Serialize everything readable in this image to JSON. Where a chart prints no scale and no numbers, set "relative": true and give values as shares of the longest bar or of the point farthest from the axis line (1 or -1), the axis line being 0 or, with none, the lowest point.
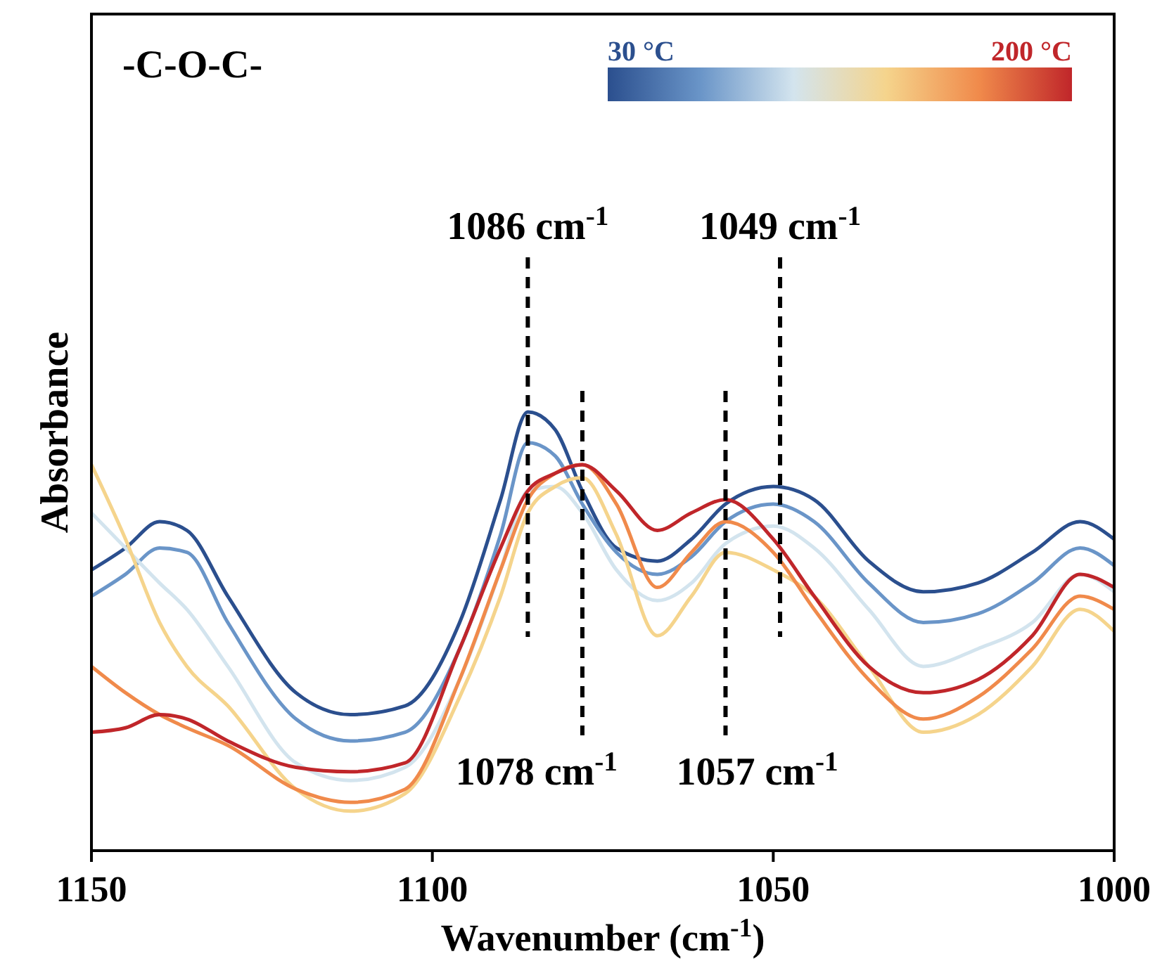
{
  "chart_data": {
    "type": "line",
    "relative": true,
    "xlabel": "Wavenumber (cm$^{-1}$)",
    "ylabel": "Absorbance",
    "x": [
      1150,
      1145,
      1140,
      1136,
      1130,
      1120,
      1112,
      1104,
      1096,
      1090,
      1086,
      1082,
      1078,
      1073,
      1067,
      1062,
      1057,
      1050,
      1044,
      1036,
      1028,
      1020,
      1012,
      1005,
      1000
    ],
    "xlim": [
      1150,
      1000
    ],
    "xticks": [
      1150,
      1100,
      1050,
      1000
    ],
    "tick_labels": "x",
    "grid": false,
    "legend": "top right",
    "line_style": "solid",
    "marker": "none",
    "series": [
      {
        "name": "30 °C",
        "color": "#2b4f8e",
        "values": [
          0.64,
          0.69,
          0.75,
          0.73,
          0.58,
          0.36,
          0.31,
          0.33,
          0.52,
          0.8,
          1.0,
          0.96,
          0.82,
          0.69,
          0.66,
          0.71,
          0.79,
          0.83,
          0.8,
          0.66,
          0.59,
          0.61,
          0.68,
          0.75,
          0.71
        ]
      },
      {
        "color": "#6a95c8",
        "values": [
          0.58,
          0.63,
          0.69,
          0.68,
          0.52,
          0.3,
          0.25,
          0.27,
          0.46,
          0.72,
          0.93,
          0.9,
          0.79,
          0.68,
          0.63,
          0.67,
          0.75,
          0.79,
          0.75,
          0.61,
          0.52,
          0.54,
          0.61,
          0.69,
          0.65
        ]
      },
      {
        "color": "#d3e4ee",
        "values": [
          0.77,
          0.69,
          0.61,
          0.55,
          0.42,
          0.2,
          0.16,
          0.19,
          0.39,
          0.64,
          0.82,
          0.83,
          0.77,
          0.64,
          0.57,
          0.61,
          0.7,
          0.74,
          0.69,
          0.55,
          0.42,
          0.46,
          0.52,
          0.63,
          0.59
        ]
      },
      {
        "color": "#f5d48c",
        "values": [
          0.88,
          0.71,
          0.52,
          0.42,
          0.33,
          0.14,
          0.09,
          0.13,
          0.35,
          0.58,
          0.77,
          0.83,
          0.85,
          0.72,
          0.49,
          0.58,
          0.68,
          0.64,
          0.58,
          0.42,
          0.27,
          0.31,
          0.42,
          0.55,
          0.5
        ]
      },
      {
        "color": "#f08a4b",
        "values": [
          0.42,
          0.36,
          0.31,
          0.28,
          0.24,
          0.14,
          0.11,
          0.14,
          0.39,
          0.64,
          0.8,
          0.86,
          0.88,
          0.79,
          0.6,
          0.68,
          0.75,
          0.68,
          0.55,
          0.39,
          0.3,
          0.35,
          0.46,
          0.58,
          0.55
        ]
      },
      {
        "name": "200 °C",
        "color": "#c0262a",
        "values": [
          0.27,
          0.28,
          0.31,
          0.3,
          0.25,
          0.19,
          0.18,
          0.2,
          0.46,
          0.69,
          0.82,
          0.86,
          0.88,
          0.82,
          0.73,
          0.77,
          0.8,
          0.71,
          0.58,
          0.42,
          0.36,
          0.39,
          0.49,
          0.63,
          0.6
        ]
      }
    ],
    "ref_lines": [
      {
        "axis": "x",
        "value": 1086,
        "label": "1086 cm$^{-1}$",
        "line_style": "dashed",
        "color": "#000000"
      },
      {
        "axis": "x",
        "value": 1078,
        "label": "1078 cm$^{-1}$",
        "line_style": "dashed",
        "color": "#000000"
      },
      {
        "axis": "x",
        "value": 1057,
        "label": "1057 cm$^{-1}$",
        "line_style": "dashed",
        "color": "#000000"
      },
      {
        "axis": "x",
        "value": 1049,
        "label": "1049 cm$^{-1}$",
        "line_style": "dashed",
        "color": "#000000"
      }
    ],
    "annotations": [
      "-C-O-C-"
    ]
  }
}
